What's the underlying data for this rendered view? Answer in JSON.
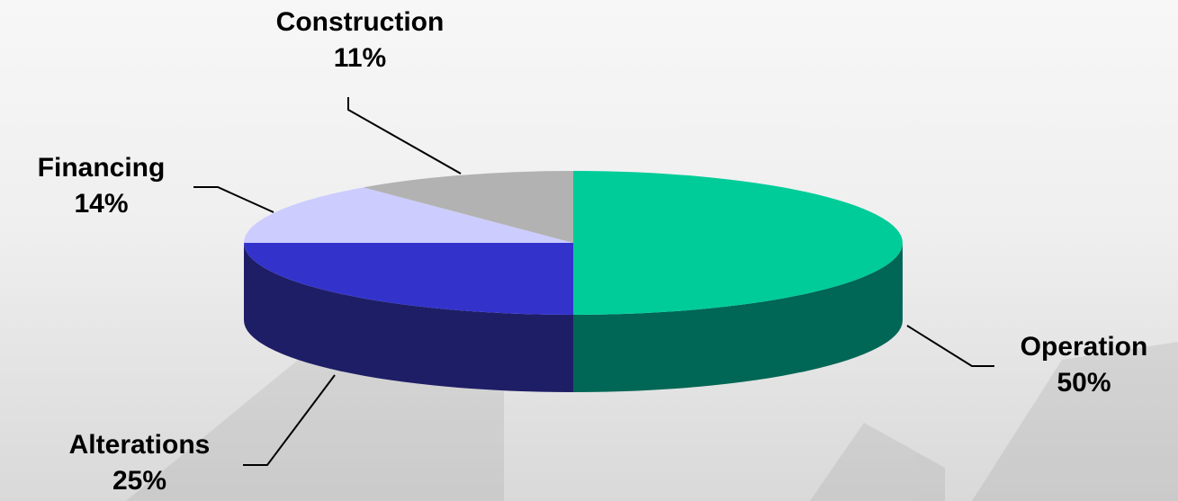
{
  "chart_data": {
    "type": "pie",
    "title": "",
    "slices": [
      {
        "label": "Operation",
        "value": 50,
        "pct_label": "50%",
        "color": "#00CC99",
        "side_color": "#006655"
      },
      {
        "label": "Alterations",
        "value": 25,
        "pct_label": "25%",
        "color": "#3333CC",
        "side_color": "#1E1E66"
      },
      {
        "label": "Financing",
        "value": 14,
        "pct_label": "14%",
        "color": "#CCCCFF",
        "side_color": "#9999CC"
      },
      {
        "label": "Construction",
        "value": 11,
        "pct_label": "11%",
        "color": "#B2B2B2",
        "side_color": "#808080"
      }
    ],
    "style": "3d",
    "legend": "none"
  }
}
